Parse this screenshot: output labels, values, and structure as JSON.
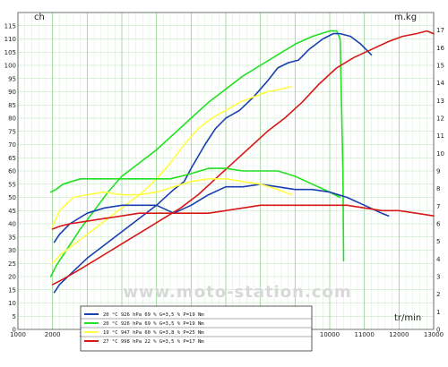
{
  "chart_data": {
    "type": "line",
    "title": "",
    "xlabel": "tr/min",
    "ylabel_left": "ch",
    "ylabel_right": "m.kg",
    "xlim": [
      1000,
      13000
    ],
    "ylim_left": [
      0,
      120
    ],
    "ylim_right": [
      0,
      18
    ],
    "grid": true,
    "x_ticks": [
      1000,
      2000,
      3000,
      4000,
      5000,
      6000,
      7000,
      8000,
      9000,
      10000,
      11000,
      12000,
      13000
    ],
    "y_ticks_left": [
      0,
      5,
      10,
      15,
      20,
      25,
      30,
      35,
      40,
      45,
      50,
      55,
      60,
      65,
      70,
      75,
      80,
      85,
      90,
      95,
      100,
      105,
      110,
      115
    ],
    "y_ticks_right": [
      0,
      1,
      2,
      3,
      4,
      5,
      6,
      7,
      8,
      9,
      10,
      11,
      12,
      13,
      14,
      15,
      16,
      17
    ],
    "watermark": "www.moto-station.com",
    "legend_placement": "bottom-center",
    "legend": [
      {
        "color": "#1a3fb0",
        "text": "20 °C   926 hPa   69 %   G=3,5 %   P=19 Nm"
      },
      {
        "color": "#22e022",
        "text": "20 °C   926 hPa   69 %   G=3,5 %   P=19 Nm"
      },
      {
        "color": "#ffff44",
        "text": "19 °C   947 hPa   60 %   G=3,8 %   P=25 Nm"
      },
      {
        "color": "#d81818",
        "text": "27 °C   998 hPa   22 %   G=3,5 %   P=17 Nm"
      }
    ],
    "series": [
      {
        "color": "#22e022",
        "axis": "left",
        "kind": "power",
        "points": [
          [
            1950,
            20
          ],
          [
            2100,
            24
          ],
          [
            2400,
            30
          ],
          [
            2800,
            38
          ],
          [
            3200,
            45
          ],
          [
            3600,
            52
          ],
          [
            4000,
            58
          ],
          [
            4500,
            63
          ],
          [
            5000,
            68
          ],
          [
            5500,
            74
          ],
          [
            6000,
            80
          ],
          [
            6500,
            86
          ],
          [
            7000,
            91
          ],
          [
            7500,
            96
          ],
          [
            8000,
            100
          ],
          [
            8500,
            104
          ],
          [
            9000,
            108
          ],
          [
            9500,
            111
          ],
          [
            10000,
            113
          ],
          [
            10200,
            113
          ],
          [
            10300,
            110
          ],
          [
            10380,
            60
          ],
          [
            10400,
            26
          ]
        ]
      },
      {
        "color": "#1a3fb0",
        "axis": "left",
        "kind": "power",
        "points": [
          [
            2050,
            14
          ],
          [
            2200,
            17
          ],
          [
            2600,
            22
          ],
          [
            3000,
            27
          ],
          [
            3500,
            32
          ],
          [
            4000,
            37
          ],
          [
            4500,
            42
          ],
          [
            5000,
            47
          ],
          [
            5500,
            53
          ],
          [
            5800,
            56
          ],
          [
            6000,
            61
          ],
          [
            6400,
            70
          ],
          [
            6700,
            76
          ],
          [
            7000,
            80
          ],
          [
            7400,
            83
          ],
          [
            7800,
            88
          ],
          [
            8200,
            94
          ],
          [
            8500,
            99
          ],
          [
            8800,
            101
          ],
          [
            9100,
            102
          ],
          [
            9400,
            106
          ],
          [
            9800,
            110
          ],
          [
            10100,
            112
          ],
          [
            10300,
            112
          ],
          [
            10600,
            111
          ],
          [
            10900,
            108
          ],
          [
            11200,
            104
          ]
        ]
      },
      {
        "color": "#ffff44",
        "axis": "left",
        "kind": "power",
        "points": [
          [
            2000,
            25
          ],
          [
            2200,
            28
          ],
          [
            2600,
            32
          ],
          [
            3000,
            36
          ],
          [
            3400,
            40
          ],
          [
            3800,
            44
          ],
          [
            4200,
            48
          ],
          [
            4600,
            52
          ],
          [
            5000,
            57
          ],
          [
            5400,
            63
          ],
          [
            5800,
            70
          ],
          [
            6200,
            76
          ],
          [
            6600,
            80
          ],
          [
            7000,
            83
          ],
          [
            7400,
            86
          ],
          [
            7800,
            88
          ],
          [
            8200,
            90
          ],
          [
            8600,
            91
          ],
          [
            8900,
            92
          ]
        ]
      },
      {
        "color": "#d81818",
        "axis": "left",
        "kind": "power",
        "points": [
          [
            2000,
            17
          ],
          [
            2300,
            19
          ],
          [
            2700,
            22
          ],
          [
            3200,
            26
          ],
          [
            3700,
            30
          ],
          [
            4200,
            34
          ],
          [
            4700,
            38
          ],
          [
            5200,
            42
          ],
          [
            5700,
            46
          ],
          [
            6200,
            51
          ],
          [
            6700,
            57
          ],
          [
            7200,
            63
          ],
          [
            7700,
            69
          ],
          [
            8200,
            75
          ],
          [
            8700,
            80
          ],
          [
            9200,
            86
          ],
          [
            9700,
            93
          ],
          [
            10200,
            99
          ],
          [
            10700,
            103
          ],
          [
            11200,
            106
          ],
          [
            11700,
            109
          ],
          [
            12100,
            111
          ],
          [
            12500,
            112
          ],
          [
            12800,
            113
          ],
          [
            13000,
            112
          ]
        ]
      },
      {
        "color": "#22e022",
        "axis": "left",
        "kind": "torque",
        "points": [
          [
            1950,
            52
          ],
          [
            2100,
            53
          ],
          [
            2300,
            55
          ],
          [
            2800,
            57
          ],
          [
            3500,
            57
          ],
          [
            4200,
            57
          ],
          [
            4800,
            57
          ],
          [
            5400,
            57
          ],
          [
            6000,
            59
          ],
          [
            6500,
            61
          ],
          [
            7000,
            61
          ],
          [
            7500,
            60
          ],
          [
            8000,
            60
          ],
          [
            8500,
            60
          ],
          [
            9000,
            58
          ],
          [
            9500,
            55
          ],
          [
            10000,
            52
          ],
          [
            10300,
            50
          ]
        ]
      },
      {
        "color": "#1a3fb0",
        "axis": "left",
        "kind": "torque",
        "points": [
          [
            2050,
            33
          ],
          [
            2200,
            36
          ],
          [
            2500,
            40
          ],
          [
            3000,
            44
          ],
          [
            3500,
            46
          ],
          [
            4000,
            47
          ],
          [
            4500,
            47
          ],
          [
            5000,
            47
          ],
          [
            5500,
            44
          ],
          [
            6000,
            47
          ],
          [
            6500,
            51
          ],
          [
            7000,
            54
          ],
          [
            7500,
            54
          ],
          [
            8000,
            55
          ],
          [
            8500,
            54
          ],
          [
            9000,
            53
          ],
          [
            9500,
            53
          ],
          [
            10000,
            52
          ],
          [
            10500,
            50
          ],
          [
            11000,
            47
          ],
          [
            11500,
            44
          ],
          [
            11700,
            43
          ]
        ]
      },
      {
        "color": "#ffff44",
        "axis": "left",
        "kind": "torque",
        "points": [
          [
            2000,
            39
          ],
          [
            2200,
            45
          ],
          [
            2600,
            50
          ],
          [
            3000,
            51
          ],
          [
            3500,
            52
          ],
          [
            4000,
            51
          ],
          [
            4500,
            51
          ],
          [
            5000,
            52
          ],
          [
            5500,
            54
          ],
          [
            6000,
            56
          ],
          [
            6500,
            57
          ],
          [
            7000,
            57
          ],
          [
            7500,
            56
          ],
          [
            8000,
            55
          ],
          [
            8500,
            53
          ],
          [
            8900,
            51
          ]
        ]
      },
      {
        "color": "#d81818",
        "axis": "left",
        "kind": "torque",
        "points": [
          [
            2000,
            38
          ],
          [
            2200,
            39
          ],
          [
            2500,
            40
          ],
          [
            3000,
            41
          ],
          [
            3500,
            42
          ],
          [
            4000,
            43
          ],
          [
            4500,
            44
          ],
          [
            5000,
            44
          ],
          [
            5500,
            44
          ],
          [
            6000,
            44
          ],
          [
            6500,
            44
          ],
          [
            7000,
            45
          ],
          [
            7500,
            46
          ],
          [
            8000,
            47
          ],
          [
            8500,
            47
          ],
          [
            9000,
            47
          ],
          [
            9500,
            47
          ],
          [
            10000,
            47
          ],
          [
            10500,
            47
          ],
          [
            11000,
            46
          ],
          [
            11500,
            45
          ],
          [
            12000,
            45
          ],
          [
            12500,
            44
          ],
          [
            13000,
            43
          ]
        ]
      }
    ]
  }
}
